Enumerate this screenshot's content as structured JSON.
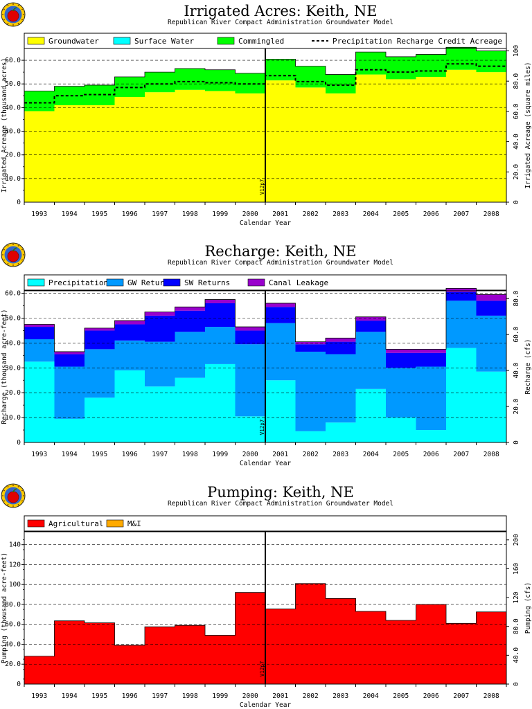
{
  "chart_data": [
    {
      "type": "area",
      "title": "Irrigated Acres: Keith, NE",
      "subtitle": "Republican River Compact Administration Groundwater Model",
      "xlabel": "Calendar Year",
      "ylabel": "Irrigated Acreage (thousand acres)",
      "y2label": "Irrigated Acreage (square miles)",
      "ylim": [
        0,
        65
      ],
      "y2lim": [
        0,
        101.6
      ],
      "yticks": [
        "10.0",
        "20.0",
        "30.0",
        "40.0",
        "50.0",
        "60.0"
      ],
      "y2ticks": [
        "0",
        "20.0",
        "40.0",
        "60.0",
        "80.0",
        "100"
      ],
      "grid": true,
      "legend_position": "top",
      "stacked": true,
      "categories": [
        "1993",
        "1994",
        "1995",
        "1996",
        "1997",
        "1998",
        "1999",
        "2000",
        "2001",
        "2002",
        "2003",
        "2004",
        "2005",
        "2006",
        "2007",
        "2008"
      ],
      "series": [
        {
          "name": "Groundwater",
          "color": "#ffff00",
          "values": [
            38.5,
            41,
            41,
            44.5,
            46.5,
            47.5,
            47,
            46,
            51.5,
            48.5,
            46,
            54,
            52,
            53,
            56,
            55
          ]
        },
        {
          "name": "Surface Water",
          "color": "#00ffff",
          "values": [
            0,
            0,
            0,
            0,
            0,
            0,
            0,
            0,
            0,
            0,
            0,
            0,
            0,
            0,
            0,
            0
          ]
        },
        {
          "name": "Commingled",
          "color": "#00ff00",
          "values": [
            8.5,
            8,
            8.5,
            8.5,
            8.5,
            9,
            9,
            8.5,
            9,
            9,
            8,
            9.5,
            9.5,
            9.5,
            9.5,
            9
          ]
        }
      ],
      "line_series": {
        "name": "Precipitation Recharge Credit Acreage",
        "style": "dashed",
        "color": "#000000",
        "values": [
          42,
          45,
          45.5,
          48.5,
          50,
          51,
          50.5,
          50,
          53.5,
          51,
          49.5,
          56,
          55,
          55.5,
          58.5,
          57.5
        ]
      },
      "marker": {
        "label": "V12p7",
        "after": "2000"
      }
    },
    {
      "type": "area",
      "title": "Recharge: Keith, NE",
      "subtitle": "Republican River Compact Administration Groundwater Model",
      "xlabel": "Calendar Year",
      "ylabel": "Recharge (thousand acre-feet)",
      "y2label": "Recharge (cfs)",
      "ylim": [
        0,
        61
      ],
      "y2lim": [
        0,
        84.3
      ],
      "yticks": [
        "10.0",
        "20.0",
        "30.0",
        "40.0",
        "50.0",
        "60.0"
      ],
      "y2ticks": [
        "0",
        "20.0",
        "40.0",
        "60.0",
        "80.0"
      ],
      "grid": true,
      "legend_position": "top",
      "stacked": true,
      "categories": [
        "1993",
        "1994",
        "1995",
        "1996",
        "1997",
        "1998",
        "1999",
        "2000",
        "2001",
        "2002",
        "2003",
        "2004",
        "2005",
        "2006",
        "2007",
        "2008"
      ],
      "series": [
        {
          "name": "Precipitation",
          "color": "#00ffff",
          "values": [
            32.5,
            9.5,
            18,
            29,
            22.5,
            26,
            31.5,
            10.5,
            25,
            4.5,
            8,
            21.5,
            10,
            5,
            38,
            28.5
          ]
        },
        {
          "name": "GW Returns",
          "color": "#0099ff",
          "values": [
            9,
            21,
            19.5,
            12,
            18,
            18.5,
            15,
            29,
            23,
            32,
            27.5,
            23,
            20,
            25.5,
            19,
            22.5
          ]
        },
        {
          "name": "SW Returns",
          "color": "#0000ff",
          "values": [
            5,
            5,
            7.5,
            6.5,
            10.5,
            8.5,
            9.5,
            5.5,
            6.5,
            3,
            5,
            4.5,
            6,
            5.5,
            3.5,
            6
          ]
        },
        {
          "name": "Canal Leakage",
          "color": "#9900cc",
          "values": [
            1,
            1,
            1,
            1.5,
            1.5,
            1.5,
            1.5,
            1.5,
            1.5,
            1,
            1.5,
            1.5,
            1.5,
            1.5,
            1.5,
            2.5
          ]
        }
      ],
      "marker": {
        "label": "V12p7",
        "after": "2000"
      }
    },
    {
      "type": "area",
      "title": "Pumping: Keith, NE",
      "subtitle": "Republican River Compact Administration Groundwater Model",
      "xlabel": "Calendar Year",
      "ylabel": "Pumping (thousand acre-feet)",
      "y2label": "Pumping (cfs)",
      "ylim": [
        0,
        153
      ],
      "y2lim": [
        0,
        211.3
      ],
      "yticks": [
        "20.0",
        "40.0",
        "60.0",
        "80.0",
        "100",
        "120",
        "140"
      ],
      "y2ticks": [
        "0",
        "40.0",
        "80.0",
        "120",
        "160",
        "200"
      ],
      "grid": true,
      "legend_position": "top",
      "stacked": true,
      "categories": [
        "1993",
        "1994",
        "1995",
        "1996",
        "1997",
        "1998",
        "1999",
        "2000",
        "2001",
        "2002",
        "2003",
        "2004",
        "2005",
        "2006",
        "2007",
        "2008"
      ],
      "series": [
        {
          "name": "Agricultural",
          "color": "#ff0000",
          "values": [
            28,
            63.5,
            61.5,
            39,
            57.5,
            59,
            49,
            92,
            75.5,
            101,
            86,
            73,
            64,
            80,
            61,
            72.5
          ]
        },
        {
          "name": "M&I",
          "color": "#ffaa00",
          "values": [
            0,
            0,
            0,
            0,
            0,
            0,
            0,
            0,
            0,
            0,
            0,
            0,
            0,
            0,
            0,
            0
          ]
        }
      ],
      "marker": {
        "label": "V12p7",
        "after": "2000"
      }
    }
  ]
}
